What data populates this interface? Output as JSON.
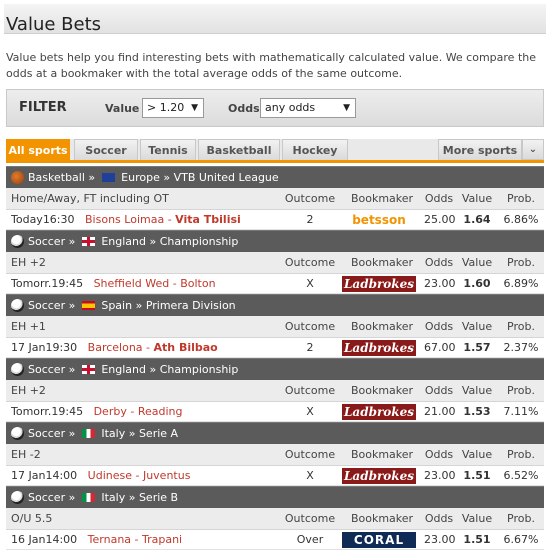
{
  "page": {
    "title": "Value Bets",
    "description": "Value bets help you find interesting bets with mathematically calculated value. We compare the odds at a bookmaker with the total average odds of the same outcome."
  },
  "filter": {
    "label": "FILTER",
    "value_label": "Value",
    "value_selected": "> 1.20",
    "odds_label": "Odds",
    "odds_selected": "any odds"
  },
  "tabs": [
    "All sports",
    "Soccer",
    "Tennis",
    "Basketball",
    "Hockey",
    "More sports"
  ],
  "columns": {
    "outcome": "Outcome",
    "bookmaker": "Bookmaker",
    "odds": "Odds",
    "value": "Value",
    "prob": "Prob."
  },
  "groups": [
    {
      "sport": "Basketball",
      "region": "Europe",
      "league": "VTB United League",
      "market": "Home/Away, FT including OT",
      "time": "Today16:30",
      "home": "Bisons Loimaa",
      "away": "Vita Tbilisi",
      "bold": "away",
      "outcome": "2",
      "bookmaker": "betsson",
      "odds": "25.00",
      "value": "1.64",
      "prob": "6.86%"
    },
    {
      "sport": "Soccer",
      "region": "England",
      "league": "Championship",
      "market": "EH +2",
      "time": "Tomorr.19:45",
      "home": "Sheffield Wed",
      "away": "Bolton",
      "bold": "none",
      "outcome": "X",
      "bookmaker": "Ladbrokes",
      "odds": "23.00",
      "value": "1.60",
      "prob": "6.89%"
    },
    {
      "sport": "Soccer",
      "region": "Spain",
      "league": "Primera Division",
      "market": "EH +1",
      "time": "17 Jan19:30",
      "home": "Barcelona",
      "away": "Ath Bilbao",
      "bold": "away",
      "outcome": "2",
      "bookmaker": "Ladbrokes",
      "odds": "67.00",
      "value": "1.57",
      "prob": "2.37%"
    },
    {
      "sport": "Soccer",
      "region": "England",
      "league": "Championship",
      "market": "EH +2",
      "time": "Tomorr.19:45",
      "home": "Derby",
      "away": "Reading",
      "bold": "none",
      "outcome": "X",
      "bookmaker": "Ladbrokes",
      "odds": "21.00",
      "value": "1.53",
      "prob": "7.11%"
    },
    {
      "sport": "Soccer",
      "region": "Italy",
      "league": "Serie A",
      "market": "EH -2",
      "time": "17 Jan14:00",
      "home": "Udinese",
      "away": "Juventus",
      "bold": "none",
      "outcome": "X",
      "bookmaker": "Ladbrokes",
      "odds": "23.00",
      "value": "1.51",
      "prob": "6.52%"
    },
    {
      "sport": "Soccer",
      "region": "Italy",
      "league": "Serie B",
      "market": "O/U 5.5",
      "time": "16 Jan14:00",
      "home": "Ternana",
      "away": "Trapani",
      "bold": "none",
      "outcome": "Over",
      "bookmaker": "CORAL",
      "odds": "23.00",
      "value": "1.51",
      "prob": "6.67%"
    }
  ],
  "colors": {
    "accent": "#f29400",
    "group_bar": "#5b5b5b",
    "match_text": "#c0392b",
    "ladbrokes": "#8a1a1a",
    "coral": "#0f2a55"
  }
}
